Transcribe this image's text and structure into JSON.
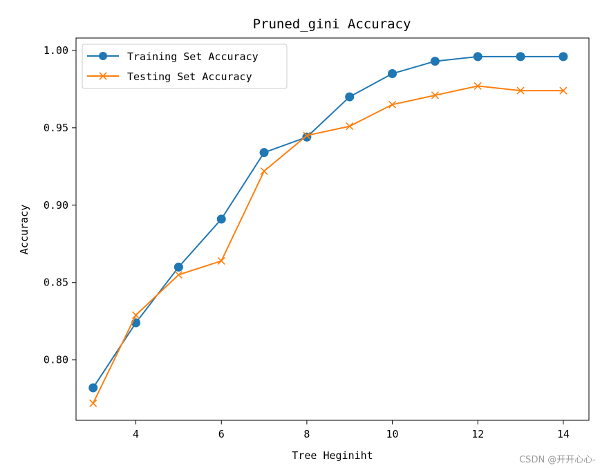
{
  "chart_data": {
    "type": "line",
    "title": "Pruned_gini Accuracy",
    "xlabel": "Tree Heginiht",
    "ylabel": "Accuracy",
    "x": [
      3,
      4,
      5,
      6,
      7,
      8,
      9,
      10,
      11,
      12,
      13,
      14
    ],
    "xlim": [
      2.6,
      14.6
    ],
    "ylim": [
      0.761,
      1.008
    ],
    "xticks": [
      4,
      6,
      8,
      10,
      12,
      14
    ],
    "yticks": [
      0.8,
      0.85,
      0.9,
      0.95,
      1.0
    ],
    "ytick_labels": [
      "0.80",
      "0.85",
      "0.90",
      "0.95",
      "1.00"
    ],
    "grid": false,
    "legend_position": "top-left",
    "series": [
      {
        "name": "Training Set Accuracy",
        "marker": "circle",
        "color": "#1f77b4",
        "values": [
          0.782,
          0.824,
          0.86,
          0.891,
          0.934,
          0.944,
          0.97,
          0.985,
          0.993,
          0.996,
          0.996,
          0.996
        ]
      },
      {
        "name": "Testing Set Accuracy",
        "marker": "x",
        "color": "#ff7f0e",
        "values": [
          0.772,
          0.829,
          0.855,
          0.864,
          0.922,
          0.945,
          0.951,
          0.965,
          0.971,
          0.977,
          0.974,
          0.974
        ]
      }
    ]
  },
  "watermark": "CSDN @开开心心-"
}
